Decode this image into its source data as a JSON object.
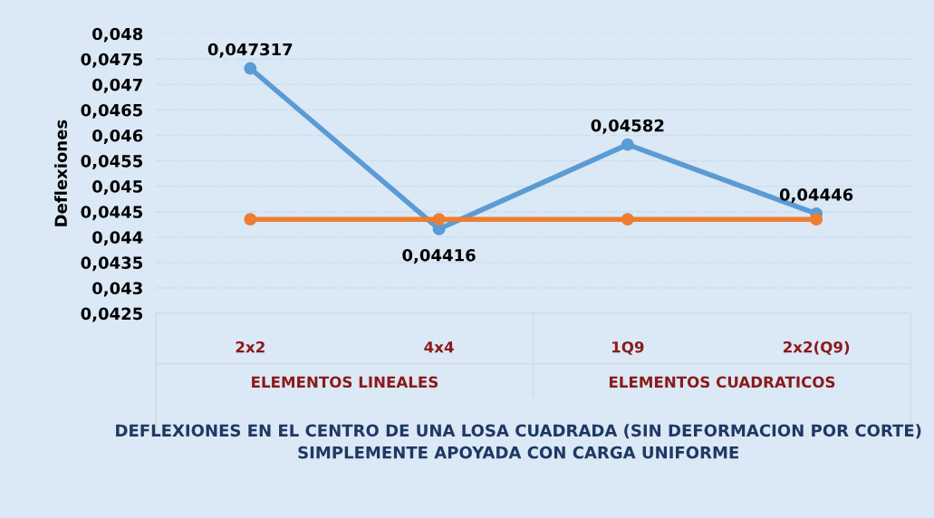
{
  "chart_data": {
    "type": "line",
    "xlabel": "DEFLEXIONES EN EL CENTRO DE UNA LOSA CUADRADA (SIN DEFORMACION POR CORTE) SIMPLEMENTE APOYADA CON CARGA UNIFORME",
    "ylabel": "Deflexiones",
    "categories": [
      "2x2",
      "4x4",
      "1Q9",
      "2x2(Q9)"
    ],
    "annotations": [
      "ELEMENTOS LINEALES",
      "ELEMENTOS CUADRATICOS"
    ],
    "series": [
      {
        "color": "#5b9bd5",
        "values": [
          0.047317,
          0.04416,
          0.04582,
          0.04446
        ],
        "value_labels": [
          "0,047317",
          "0,04416",
          "0,04582",
          "0,04446"
        ]
      },
      {
        "color": "#ed7d31",
        "values": [
          0.04435,
          0.04435,
          0.04435,
          0.04435
        ]
      }
    ],
    "ylim": [
      0.0425,
      0.048
    ],
    "yticks": [
      {
        "value": 0.0425,
        "label": "0,0425"
      },
      {
        "value": 0.043,
        "label": "0,043"
      },
      {
        "value": 0.0435,
        "label": "0,0435"
      },
      {
        "value": 0.044,
        "label": "0,044"
      },
      {
        "value": 0.0445,
        "label": "0,0445"
      },
      {
        "value": 0.045,
        "label": "0,045"
      },
      {
        "value": 0.0455,
        "label": "0,0455"
      },
      {
        "value": 0.046,
        "label": "0,046"
      },
      {
        "value": 0.0465,
        "label": "0,0465"
      },
      {
        "value": 0.047,
        "label": "0,047"
      },
      {
        "value": 0.0475,
        "label": "0,0475"
      },
      {
        "value": 0.048,
        "label": "0,048"
      }
    ],
    "grid": "y",
    "marker": "circle",
    "line_style": "solid"
  }
}
